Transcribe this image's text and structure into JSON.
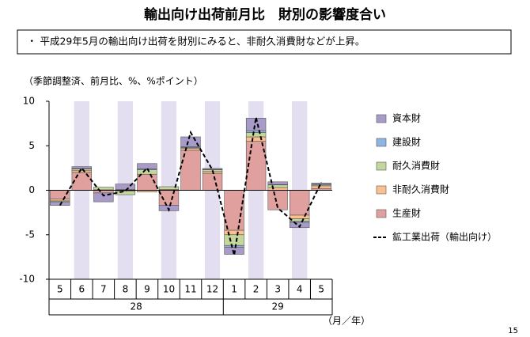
{
  "chart_data": {
    "type": "stacked-bar-line",
    "title": "輸出向け出荷前月比　財別の影響度合い",
    "note": "・ 平成29年5月の輸出向け出荷を財別にみると、非耐久消費財などが上昇。",
    "unit_label": "（季節調整済、前月比、%、%ポイント）",
    "x_unit": "（月／年）",
    "page_number": "15",
    "categories": [
      "5",
      "6",
      "7",
      "8",
      "9",
      "10",
      "11",
      "12",
      "1",
      "2",
      "3",
      "4",
      "5"
    ],
    "years": [
      "28",
      "29"
    ],
    "ylim": [
      -10,
      10
    ],
    "yticks": [
      -10,
      -5,
      0,
      5,
      10
    ],
    "series": [
      {
        "name": "生産財",
        "color": "#e0a09e",
        "values": [
          -1.0,
          2.0,
          -0.3,
          0.1,
          1.8,
          -1.7,
          4.5,
          1.9,
          -4.5,
          5.5,
          -2.2,
          -2.8,
          0.2
        ]
      },
      {
        "name": "非耐久消費財",
        "color": "#fac090",
        "values": [
          -0.2,
          0.2,
          0.05,
          -0.1,
          -0.2,
          0.1,
          0.2,
          0.2,
          -0.5,
          0.5,
          0.3,
          -0.4,
          0.3
        ]
      },
      {
        "name": "耐久消費財",
        "color": "#c3d69b",
        "values": [
          -0.1,
          0.2,
          0.3,
          -0.4,
          0.5,
          0.3,
          0.1,
          0.2,
          -1.2,
          0.5,
          0.3,
          -0.3,
          0.1
        ]
      },
      {
        "name": "建設財",
        "color": "#8db4e2",
        "values": [
          0,
          0.05,
          0,
          0,
          0.1,
          0,
          0.1,
          0.05,
          -0.2,
          0.2,
          0.05,
          -0.1,
          0.1
        ]
      },
      {
        "name": "資本財",
        "color": "#a99bc9",
        "values": [
          -0.4,
          0.2,
          -1.0,
          0.6,
          0.6,
          -0.6,
          1.1,
          0.1,
          -0.8,
          1.4,
          0.3,
          -0.6,
          0.1
        ]
      },
      {
        "name": "鉱工業出荷（輸出向け）",
        "type": "line",
        "color": "#000000",
        "values": [
          -1.7,
          2.5,
          -0.6,
          -0.1,
          2.5,
          -2.2,
          6.5,
          2.3,
          -7.3,
          8.2,
          -2.0,
          -4.1,
          0.9
        ]
      }
    ]
  }
}
